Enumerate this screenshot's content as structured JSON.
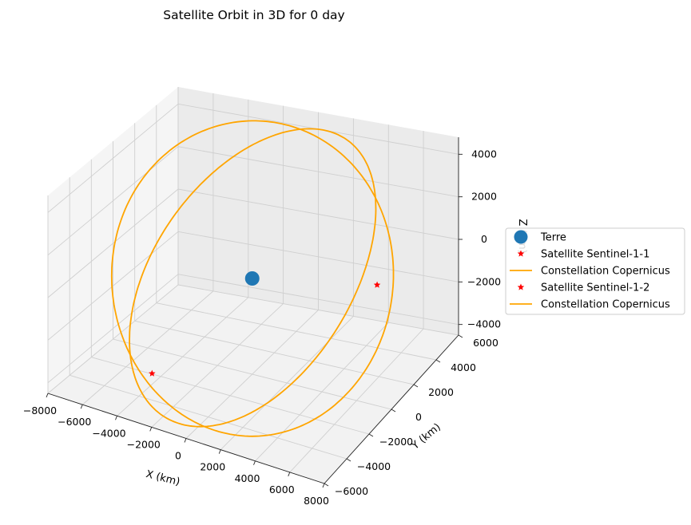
{
  "chart_data": {
    "type": "scatter",
    "projection": "3d",
    "title": "Satellite Orbit in 3D for 0 day",
    "xlabel": "X (km)",
    "ylabel": "Y (km)",
    "zlabel": "Z (km)",
    "xlim": [
      -8000,
      8000
    ],
    "ylim": [
      -6000,
      6000
    ],
    "zlim": [
      -4500,
      4800
    ],
    "xticks": [
      -8000,
      -6000,
      -4000,
      -2000,
      0,
      2000,
      4000,
      6000,
      8000
    ],
    "yticks": [
      -6000,
      -4000,
      -2000,
      0,
      2000,
      4000,
      6000
    ],
    "zticks": [
      -4000,
      -2000,
      0,
      2000,
      4000
    ],
    "grid": true,
    "legend_position": "right",
    "series": [
      {
        "name": "Terre",
        "kind": "point",
        "marker": "circle",
        "color": "#1f77b4",
        "points": [
          [
            0,
            0,
            0
          ]
        ]
      },
      {
        "name": "Satellite Sentinel-1-1",
        "kind": "point",
        "marker": "star",
        "color": "#ff0000",
        "points": [
          [
            -2100,
            -5800,
            -2100
          ]
        ]
      },
      {
        "name": "Constellation Copernicus",
        "kind": "line",
        "color": "#ffa500",
        "radius": 7000,
        "inclination_deg": 98.2,
        "raan_deg": 64
      },
      {
        "name": "Satellite Sentinel-1-2",
        "kind": "point",
        "marker": "star",
        "color": "#ff0000",
        "points": [
          [
            5800,
            2150,
            -310
          ]
        ]
      },
      {
        "name": "Constellation Copernicus",
        "kind": "line",
        "color": "#ffa500",
        "radius": 7000,
        "inclination_deg": 83,
        "raan_deg": 20
      }
    ]
  }
}
